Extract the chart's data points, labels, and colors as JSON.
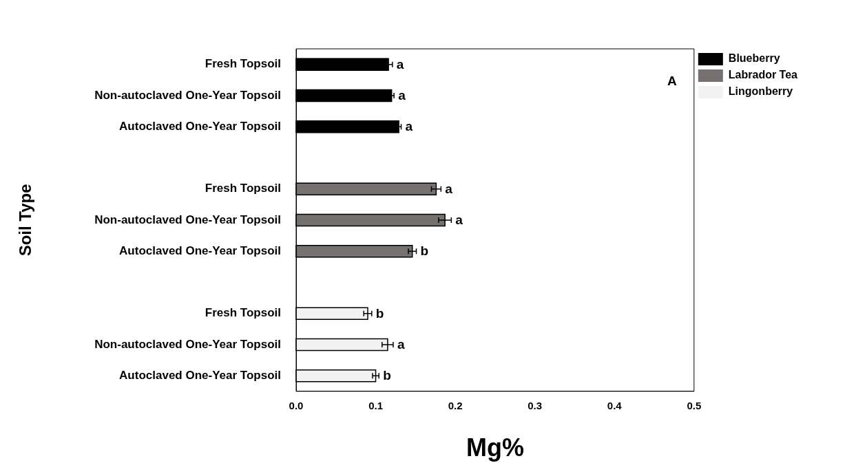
{
  "chart_data": {
    "type": "bar",
    "orientation": "horizontal",
    "xlabel": "Mg%",
    "ylabel": "Soil Type",
    "categories": [
      "Fresh Topsoil",
      "Non-autoclaved One-Year Topsoil",
      "Autoclaved One-Year Topsoil",
      null,
      "Fresh Topsoil",
      "Non-autoclaved One-Year Topsoil",
      "Autoclaved One-Year Topsoil",
      null,
      "Fresh Topsoil",
      "Non-autoclaved One-Year Topsoil",
      "Autoclaved One-Year Topsoil"
    ],
    "series": [
      {
        "name": "Blueberry",
        "color": "#000000",
        "values": [
          0.116,
          0.12,
          0.129,
          null,
          null,
          null,
          null,
          null,
          null,
          null,
          null
        ],
        "errors": [
          0.005,
          0.003,
          0.003,
          null,
          null,
          null,
          null,
          null,
          null,
          null,
          null
        ],
        "value_labels": [
          "a",
          "a",
          "a",
          null,
          null,
          null,
          null,
          null,
          null,
          null,
          null
        ]
      },
      {
        "name": "Labrador Tea",
        "color": "#767171",
        "values": [
          null,
          null,
          null,
          null,
          0.176,
          0.187,
          0.146,
          null,
          null,
          null,
          null
        ],
        "errors": [
          null,
          null,
          null,
          null,
          0.006,
          0.008,
          0.005,
          null,
          null,
          null,
          null
        ],
        "value_labels": [
          null,
          null,
          null,
          null,
          "a",
          "a",
          "b",
          null,
          null,
          null,
          null
        ]
      },
      {
        "name": "Lingonberry",
        "color": "#f2f2f2",
        "values": [
          null,
          null,
          null,
          null,
          null,
          null,
          null,
          null,
          0.09,
          0.115,
          0.1
        ],
        "errors": [
          null,
          null,
          null,
          null,
          null,
          null,
          null,
          null,
          0.005,
          0.007,
          0.004
        ],
        "value_labels": [
          null,
          null,
          null,
          null,
          null,
          null,
          null,
          null,
          "b",
          "a",
          "b"
        ]
      }
    ],
    "xlim": [
      0,
      0.5
    ],
    "xticks": [
      {
        "value": 0,
        "label": "0.0"
      },
      {
        "value": 0.1,
        "label": "0.1"
      },
      {
        "value": 0.2,
        "label": "0.2"
      },
      {
        "value": 0.3,
        "label": "0.3"
      },
      {
        "value": 0.4,
        "label": "0.4"
      },
      {
        "value": 0.5,
        "label": "0.5"
      }
    ],
    "annotations": [
      "A"
    ],
    "grid": false,
    "legend": "top right"
  }
}
